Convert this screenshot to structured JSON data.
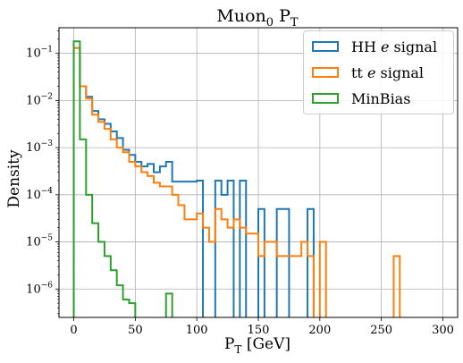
{
  "chart_data": {
    "type": "histogram",
    "title": "Muon$_0$ P$_T$",
    "title_text": "Muon",
    "title_sub": "0",
    "title_suffix": " P",
    "title_suffix_sub": "T",
    "xlabel_main": "P",
    "xlabel_sub": "T",
    "xlabel_suffix": " [GeV]",
    "ylabel": "Density",
    "xlim": [
      -12,
      312
    ],
    "ylim": [
      2.5e-07,
      0.35
    ],
    "yscale": "log",
    "grid": true,
    "legend_position": "top-right",
    "x_ticks": [
      "0",
      "50",
      "100",
      "150",
      "200",
      "250",
      "300"
    ],
    "y_ticks": [
      {
        "value": 1e-06,
        "base": "10",
        "exp": "−6"
      },
      {
        "value": 1e-05,
        "base": "10",
        "exp": "−5"
      },
      {
        "value": 0.0001,
        "base": "10",
        "exp": "−4"
      },
      {
        "value": 0.001,
        "base": "10",
        "exp": "−3"
      },
      {
        "value": 0.01,
        "base": "10",
        "exp": "−2"
      },
      {
        "value": 0.1,
        "base": "10",
        "exp": "−1"
      }
    ],
    "series": [
      {
        "name": "HH e signal",
        "label_prefix": "HH ",
        "label_italic": "e",
        "label_suffix": " signal",
        "color": "#1f77b4",
        "edges": [
          0,
          5,
          10,
          15,
          20,
          25,
          30,
          35,
          40,
          45,
          50,
          55,
          60,
          65,
          70,
          75,
          80,
          85,
          90,
          95,
          100,
          105,
          110,
          115,
          120,
          125,
          130,
          135,
          140,
          145,
          150,
          155,
          160,
          165,
          170,
          175,
          180,
          185,
          190,
          195,
          200,
          205,
          210
        ],
        "values": [
          0.13,
          0.02,
          0.012,
          0.006,
          0.004,
          0.0032,
          0.0022,
          0.0016,
          0.0009,
          0.0007,
          0.0005,
          0.0004,
          0.00045,
          0.0003,
          0.0004,
          0.0005,
          0.00019,
          0.00019,
          0.00019,
          0.00019,
          0.0002,
          0.0,
          0.0,
          0.0002,
          0.0001,
          0.0002,
          0.0,
          0.0002,
          0.0,
          0.0,
          5e-05,
          0.0,
          0.0,
          5e-05,
          5e-05,
          0.0,
          0.0,
          0.0,
          5e-05,
          0.0,
          0.0,
          0.0
        ]
      },
      {
        "name": "tt e signal",
        "label_prefix": "tt ",
        "label_italic": "e",
        "label_suffix": " signal",
        "color": "#ff7f0e",
        "edges": [
          0,
          5,
          10,
          15,
          20,
          25,
          30,
          35,
          40,
          45,
          50,
          55,
          60,
          65,
          70,
          75,
          80,
          85,
          90,
          95,
          100,
          105,
          110,
          115,
          120,
          125,
          130,
          135,
          140,
          145,
          150,
          155,
          160,
          165,
          170,
          175,
          180,
          185,
          190,
          195,
          200,
          205,
          210,
          215,
          220,
          225,
          230,
          235,
          240,
          245,
          250,
          255,
          260,
          265
        ],
        "values": [
          0.13,
          0.02,
          0.011,
          0.005,
          0.0035,
          0.0025,
          0.0015,
          0.001,
          0.0008,
          0.0005,
          0.0004,
          0.0003,
          0.00025,
          0.00018,
          0.00015,
          0.00015,
          0.0001,
          6e-05,
          3e-05,
          3e-05,
          4e-05,
          2e-05,
          1e-05,
          5e-05,
          3e-05,
          2e-05,
          3e-05,
          2e-05,
          1.5e-05,
          1.5e-05,
          5e-06,
          1e-05,
          1e-05,
          5e-06,
          5e-06,
          5e-06,
          5e-06,
          1e-05,
          5e-06,
          0.0,
          1e-05,
          0.0,
          0.0,
          0.0,
          0.0,
          0.0,
          0.0,
          0.0,
          0.0,
          0.0,
          0.0,
          0.0,
          5e-06
        ]
      },
      {
        "name": "MinBias",
        "label_prefix": "MinBias",
        "label_italic": "",
        "label_suffix": "",
        "color": "#2ca02c",
        "edges": [
          0,
          5,
          10,
          15,
          20,
          25,
          30,
          35,
          40,
          45,
          50,
          55,
          60,
          65,
          70,
          75,
          80
        ],
        "values": [
          0.18,
          0.0015,
          0.0001,
          2.5e-05,
          1e-05,
          5e-06,
          2.5e-06,
          1.2e-06,
          6e-07,
          5e-07,
          0.0,
          0.0,
          0.0,
          0.0,
          0.0,
          8e-07
        ]
      }
    ]
  }
}
